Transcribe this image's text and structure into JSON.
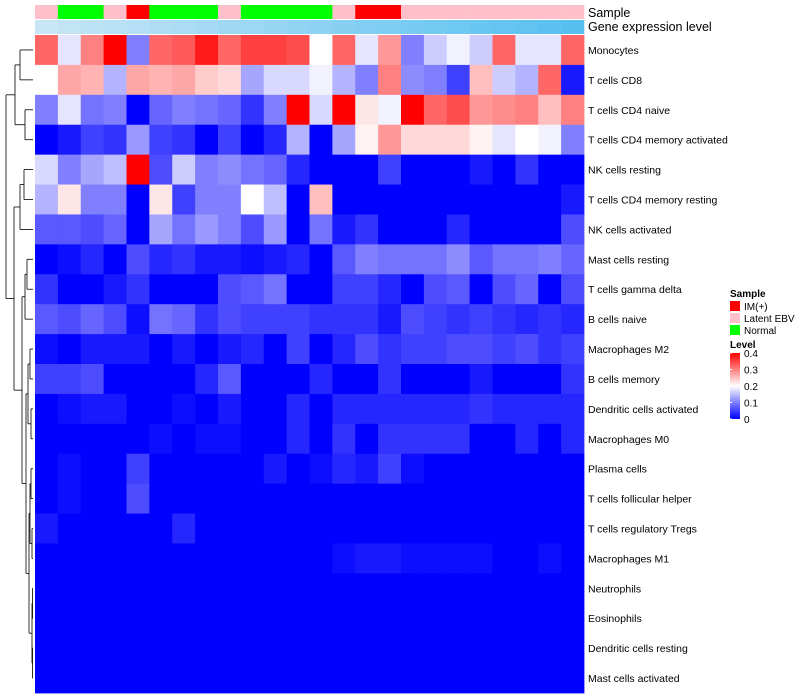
{
  "chart_data": {
    "type": "heatmap",
    "title": "",
    "annotation_tracks": [
      "Sample",
      "Gene expression level"
    ],
    "rows": [
      "Monocytes",
      "T cells CD8",
      "T cells CD4 naive",
      "T cells CD4 memory activated",
      "NK cells resting",
      "T cells CD4 memory resting",
      "NK cells activated",
      "Mast cells resting",
      "T cells gamma delta",
      "B cells naive",
      "Macrophages M2",
      "B cells memory",
      "Dendritic cells activated",
      "Macrophages M0",
      "Plasma cells",
      "T cells follicular helper",
      "T cells regulatory  Tregs",
      "Macrophages M1",
      "Neutrophils",
      "Eosinophils",
      "Dendritic cells resting",
      "Mast cells activated"
    ],
    "n_columns": 24,
    "sample_groups": [
      "Latent EBV",
      "Normal",
      "Normal",
      "Latent EBV",
      "IM(+)",
      "Normal",
      "Normal",
      "Normal",
      "Latent EBV",
      "Normal",
      "Normal",
      "Normal",
      "Normal",
      "Latent EBV",
      "IM(+)",
      "IM(+)",
      "Latent EBV",
      "Latent EBV",
      "Latent EBV",
      "Latent EBV",
      "Latent EBV",
      "Latent EBV",
      "Latent EBV",
      "Latent EBV"
    ],
    "expression_level": [
      0.0,
      0.04,
      0.09,
      0.13,
      0.17,
      0.22,
      0.26,
      0.3,
      0.35,
      0.39,
      0.43,
      0.48,
      0.52,
      0.57,
      0.61,
      0.65,
      0.7,
      0.74,
      0.78,
      0.83,
      0.87,
      0.91,
      0.96,
      1.0
    ],
    "values": [
      [
        0.32,
        0.18,
        0.3,
        0.4,
        0.1,
        0.32,
        0.33,
        0.38,
        0.32,
        0.35,
        0.35,
        0.34,
        0.2,
        0.32,
        0.18,
        0.28,
        0.1,
        0.16,
        0.19,
        0.16,
        0.32,
        0.18,
        0.18,
        0.32
      ],
      [
        0.2,
        0.27,
        0.26,
        0.14,
        0.27,
        0.26,
        0.27,
        0.24,
        0.23,
        0.13,
        0.17,
        0.17,
        0.19,
        0.14,
        0.1,
        0.3,
        0.11,
        0.1,
        0.05,
        0.25,
        0.16,
        0.14,
        0.32,
        0.02
      ],
      [
        0.1,
        0.18,
        0.09,
        0.1,
        0.0,
        0.08,
        0.1,
        0.09,
        0.08,
        0.04,
        0.1,
        0.4,
        0.17,
        0.4,
        0.22,
        0.19,
        0.4,
        0.32,
        0.34,
        0.28,
        0.29,
        0.3,
        0.25,
        0.3
      ],
      [
        0.0,
        0.02,
        0.05,
        0.04,
        0.12,
        0.05,
        0.04,
        0.0,
        0.05,
        0.0,
        0.03,
        0.14,
        0.0,
        0.13,
        0.21,
        0.28,
        0.23,
        0.23,
        0.23,
        0.21,
        0.18,
        0.2,
        0.19,
        0.1
      ],
      [
        0.17,
        0.1,
        0.13,
        0.15,
        0.4,
        0.06,
        0.16,
        0.1,
        0.11,
        0.09,
        0.08,
        0.03,
        0.0,
        0.0,
        0.0,
        0.05,
        0.0,
        0.0,
        0.0,
        0.02,
        0.0,
        0.04,
        0.0,
        0.0
      ],
      [
        0.14,
        0.22,
        0.1,
        0.1,
        0.0,
        0.22,
        0.05,
        0.1,
        0.1,
        0.2,
        0.15,
        0.0,
        0.25,
        0.0,
        0.0,
        0.0,
        0.0,
        0.0,
        0.0,
        0.0,
        0.0,
        0.0,
        0.0,
        0.02
      ],
      [
        0.07,
        0.07,
        0.06,
        0.08,
        0.0,
        0.13,
        0.09,
        0.12,
        0.1,
        0.06,
        0.12,
        0.0,
        0.09,
        0.02,
        0.04,
        0.0,
        0.0,
        0.0,
        0.03,
        0.0,
        0.0,
        0.0,
        0.0,
        0.06
      ],
      [
        0.0,
        0.01,
        0.03,
        0.0,
        0.06,
        0.03,
        0.04,
        0.02,
        0.02,
        0.01,
        0.02,
        0.03,
        0.0,
        0.07,
        0.1,
        0.09,
        0.09,
        0.09,
        0.11,
        0.07,
        0.09,
        0.09,
        0.1,
        0.08
      ],
      [
        0.04,
        0.0,
        0.0,
        0.02,
        0.04,
        0.0,
        0.0,
        0.0,
        0.06,
        0.07,
        0.09,
        0.0,
        0.0,
        0.05,
        0.05,
        0.03,
        0.0,
        0.06,
        0.07,
        0.0,
        0.06,
        0.08,
        0.0,
        0.06
      ],
      [
        0.07,
        0.06,
        0.08,
        0.06,
        0.01,
        0.09,
        0.08,
        0.04,
        0.06,
        0.05,
        0.05,
        0.05,
        0.04,
        0.04,
        0.04,
        0.02,
        0.06,
        0.05,
        0.04,
        0.05,
        0.04,
        0.03,
        0.04,
        0.03
      ],
      [
        0.01,
        0.0,
        0.02,
        0.02,
        0.02,
        0.0,
        0.02,
        0.0,
        0.02,
        0.03,
        0.0,
        0.05,
        0.0,
        0.03,
        0.06,
        0.04,
        0.05,
        0.05,
        0.06,
        0.06,
        0.05,
        0.06,
        0.04,
        0.05
      ],
      [
        0.05,
        0.05,
        0.06,
        0.0,
        0.0,
        0.0,
        0.0,
        0.03,
        0.07,
        0.0,
        0.0,
        0.0,
        0.03,
        0.0,
        0.0,
        0.04,
        0.0,
        0.0,
        0.0,
        0.02,
        0.0,
        0.0,
        0.0,
        0.04
      ],
      [
        0.0,
        0.01,
        0.02,
        0.02,
        0.0,
        0.0,
        0.01,
        0.0,
        0.02,
        0.0,
        0.0,
        0.03,
        0.0,
        0.03,
        0.03,
        0.03,
        0.03,
        0.03,
        0.03,
        0.04,
        0.03,
        0.03,
        0.03,
        0.03
      ],
      [
        0.0,
        0.0,
        0.0,
        0.0,
        0.0,
        0.01,
        0.0,
        0.01,
        0.01,
        0.0,
        0.0,
        0.03,
        0.0,
        0.04,
        0.0,
        0.04,
        0.04,
        0.04,
        0.04,
        0.0,
        0.0,
        0.03,
        0.0,
        0.03
      ],
      [
        0.0,
        0.01,
        0.0,
        0.0,
        0.05,
        0.0,
        0.0,
        0.0,
        0.0,
        0.0,
        0.02,
        0.0,
        0.01,
        0.03,
        0.02,
        0.05,
        0.01,
        0.0,
        0.0,
        0.0,
        0.0,
        0.0,
        0.0,
        0.0
      ],
      [
        0.0,
        0.01,
        0.0,
        0.0,
        0.06,
        0.0,
        0.0,
        0.0,
        0.0,
        0.0,
        0.0,
        0.0,
        0.0,
        0.0,
        0.0,
        0.0,
        0.0,
        0.0,
        0.0,
        0.0,
        0.0,
        0.0,
        0.0,
        0.0
      ],
      [
        0.02,
        0.0,
        0.0,
        0.0,
        0.0,
        0.0,
        0.03,
        0.0,
        0.0,
        0.0,
        0.0,
        0.0,
        0.0,
        0.0,
        0.0,
        0.0,
        0.0,
        0.0,
        0.0,
        0.0,
        0.0,
        0.0,
        0.0,
        0.0
      ],
      [
        0.0,
        0.0,
        0.0,
        0.0,
        0.0,
        0.0,
        0.0,
        0.0,
        0.0,
        0.0,
        0.0,
        0.0,
        0.0,
        0.01,
        0.02,
        0.02,
        0.01,
        0.01,
        0.01,
        0.01,
        0.0,
        0.0,
        0.01,
        0.0
      ],
      [
        0.0,
        0.0,
        0.0,
        0.0,
        0.0,
        0.0,
        0.0,
        0.0,
        0.0,
        0.0,
        0.0,
        0.0,
        0.0,
        0.0,
        0.0,
        0.0,
        0.0,
        0.0,
        0.0,
        0.0,
        0.0,
        0.0,
        0.0,
        0.0
      ],
      [
        0.0,
        0.0,
        0.0,
        0.0,
        0.0,
        0.0,
        0.0,
        0.0,
        0.0,
        0.0,
        0.0,
        0.0,
        0.0,
        0.0,
        0.0,
        0.0,
        0.0,
        0.0,
        0.0,
        0.0,
        0.0,
        0.0,
        0.0,
        0.0
      ],
      [
        0.0,
        0.0,
        0.0,
        0.0,
        0.0,
        0.0,
        0.0,
        0.0,
        0.0,
        0.0,
        0.0,
        0.0,
        0.0,
        0.0,
        0.0,
        0.0,
        0.0,
        0.0,
        0.0,
        0.0,
        0.0,
        0.0,
        0.0,
        0.0
      ],
      [
        0.0,
        0.0,
        0.0,
        0.0,
        0.0,
        0.0,
        0.0,
        0.0,
        0.0,
        0.0,
        0.0,
        0.0,
        0.0,
        0.0,
        0.0,
        0.0,
        0.0,
        0.0,
        0.0,
        0.0,
        0.0,
        0.0,
        0.0,
        0.0
      ]
    ],
    "value_range": [
      0,
      0.4
    ],
    "legend": {
      "sample_title": "Sample",
      "sample_items": [
        {
          "label": "IM(+)",
          "color": "#ff0000"
        },
        {
          "label": "Latent EBV",
          "color": "#ffc0cb"
        },
        {
          "label": "Normal",
          "color": "#00ff00"
        }
      ],
      "level_title": "Level",
      "level_ticks": [
        0.4,
        0.3,
        0.2,
        0.1,
        0
      ],
      "level_tick_labels": [
        "0.4",
        "0.3",
        "0.2",
        "0.1",
        "0"
      ],
      "placement": "right"
    },
    "colors": {
      "low": "#0000ff",
      "mid": "#ffffff",
      "high": "#ff0000",
      "expr_low": "#c8e6f5",
      "expr_high": "#56bff0"
    }
  }
}
